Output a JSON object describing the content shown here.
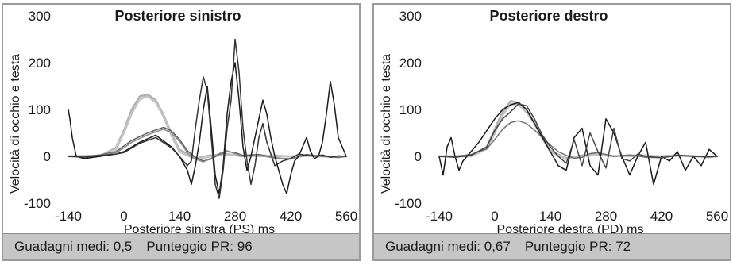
{
  "chart_data": [
    {
      "type": "line",
      "title": "Posteriore sinistro",
      "xlabel": "Posteriore sinistra (PS) ms",
      "ylabel": "Velocità di occhio e testa",
      "x_ticks": [
        -140,
        0,
        140,
        280,
        420,
        560
      ],
      "y_ticks": [
        300,
        200,
        100,
        0,
        -100
      ],
      "xlim": [
        -140,
        560
      ],
      "ylim": [
        -100,
        300
      ],
      "grid": false,
      "series": [
        {
          "color": "#b0b0b0",
          "x": [
            -140,
            -100,
            -60,
            -20,
            0,
            20,
            40,
            60,
            80,
            100,
            120,
            140,
            180,
            220,
            260,
            300,
            340,
            380,
            420,
            460,
            500,
            540,
            560
          ],
          "y": [
            0,
            0,
            1,
            18,
            55,
            100,
            128,
            132,
            120,
            88,
            48,
            14,
            -4,
            2,
            5,
            0,
            2,
            1,
            0,
            2,
            0,
            -2,
            0
          ]
        },
        {
          "color": "#c4c4c4",
          "x": [
            -140,
            -100,
            -60,
            -20,
            0,
            20,
            40,
            60,
            80,
            100,
            120,
            140,
            180,
            220,
            260,
            300,
            340,
            380,
            420,
            460,
            500,
            540,
            560
          ],
          "y": [
            0,
            1,
            0,
            15,
            50,
            92,
            122,
            128,
            116,
            84,
            44,
            10,
            -6,
            0,
            4,
            2,
            0,
            2,
            -1,
            1,
            0,
            -1,
            0
          ]
        },
        {
          "color": "#606060",
          "x": [
            -140,
            -100,
            -60,
            -20,
            0,
            20,
            40,
            60,
            80,
            100,
            120,
            140,
            160,
            180,
            200,
            220,
            240,
            260,
            280,
            300,
            340,
            380,
            420,
            460,
            500,
            540,
            560
          ],
          "y": [
            0,
            0,
            3,
            10,
            22,
            34,
            42,
            50,
            56,
            62,
            54,
            36,
            12,
            -2,
            -10,
            -6,
            4,
            10,
            8,
            2,
            4,
            -3,
            -6,
            4,
            0,
            -2,
            0
          ]
        },
        {
          "color": "#8a8a8a",
          "x": [
            -140,
            -100,
            -60,
            -20,
            0,
            20,
            40,
            60,
            80,
            100,
            120,
            140,
            160,
            180,
            200,
            220,
            240,
            260,
            280,
            300,
            340,
            380,
            420,
            460,
            500,
            540,
            560
          ],
          "y": [
            0,
            -1,
            2,
            8,
            18,
            30,
            38,
            46,
            52,
            58,
            50,
            32,
            8,
            -6,
            -12,
            -4,
            6,
            12,
            6,
            0,
            2,
            -4,
            -5,
            2,
            1,
            -1,
            0
          ]
        },
        {
          "color": "#1a1a1a",
          "x": [
            -140,
            -136,
            -130,
            -120,
            -100,
            -60,
            -20,
            0,
            40,
            80,
            120,
            140,
            160,
            170,
            180,
            190,
            200,
            210,
            220,
            230,
            240,
            250,
            260,
            270,
            280,
            290,
            300,
            310,
            320,
            330,
            340,
            350,
            360,
            370,
            380,
            390,
            400,
            410,
            420,
            430,
            440,
            450,
            460,
            470,
            480,
            490,
            500,
            510,
            520,
            530,
            540,
            560
          ],
          "y": [
            100,
            80,
            40,
            0,
            -5,
            0,
            5,
            10,
            30,
            45,
            20,
            0,
            -30,
            -60,
            -20,
            30,
            100,
            150,
            60,
            -40,
            -80,
            -20,
            90,
            160,
            200,
            120,
            20,
            -30,
            0,
            40,
            80,
            120,
            90,
            40,
            0,
            -30,
            -60,
            -80,
            -40,
            -10,
            0,
            20,
            40,
            10,
            -5,
            0,
            30,
            90,
            160,
            110,
            40,
            0
          ]
        },
        {
          "color": "#333333",
          "x": [
            -140,
            -100,
            -60,
            -20,
            0,
            40,
            80,
            120,
            140,
            160,
            170,
            180,
            190,
            200,
            210,
            220,
            230,
            240,
            250,
            260,
            270,
            280,
            290,
            300,
            310,
            320,
            330,
            340,
            350,
            360,
            380,
            400,
            420,
            440,
            460,
            480,
            500,
            520,
            540,
            560
          ],
          "y": [
            0,
            -2,
            2,
            5,
            8,
            28,
            40,
            18,
            0,
            -20,
            -10,
            60,
            120,
            170,
            140,
            40,
            -60,
            -90,
            -30,
            60,
            120,
            250,
            180,
            60,
            -10,
            -60,
            -20,
            40,
            70,
            30,
            -20,
            -10,
            -5,
            5,
            2,
            0,
            3,
            -2,
            1,
            0
          ]
        }
      ]
    },
    {
      "type": "line",
      "title": "Posteriore destro",
      "xlabel": "Posteriore destra (PD) ms",
      "ylabel": "Velocità di occhio e testa",
      "x_ticks": [
        -140,
        0,
        140,
        280,
        420,
        560
      ],
      "y_ticks": [
        300,
        200,
        100,
        0,
        -100
      ],
      "xlim": [
        -140,
        560
      ],
      "ylim": [
        -100,
        300
      ],
      "grid": false,
      "series": [
        {
          "color": "#b0b0b0",
          "x": [
            -140,
            -100,
            -60,
            -20,
            0,
            20,
            40,
            60,
            80,
            100,
            120,
            140,
            180,
            220,
            260,
            300,
            340,
            380,
            420,
            460,
            500,
            540,
            560
          ],
          "y": [
            0,
            0,
            1,
            20,
            58,
            95,
            118,
            114,
            98,
            72,
            40,
            12,
            -4,
            2,
            4,
            0,
            2,
            1,
            0,
            2,
            0,
            -1,
            0
          ]
        },
        {
          "color": "#c4c4c4",
          "x": [
            -140,
            -100,
            -60,
            -20,
            0,
            20,
            40,
            60,
            80,
            100,
            120,
            140,
            180,
            220,
            260,
            300,
            340,
            380,
            420,
            460,
            500,
            540,
            560
          ],
          "y": [
            0,
            0,
            0,
            16,
            50,
            88,
            112,
            110,
            94,
            70,
            38,
            10,
            -6,
            0,
            3,
            1,
            0,
            2,
            -1,
            1,
            0,
            -2,
            0
          ]
        },
        {
          "color": "#707070",
          "x": [
            -140,
            -100,
            -60,
            -20,
            0,
            20,
            40,
            60,
            80,
            100,
            120,
            140,
            160,
            180,
            200,
            220,
            240,
            260,
            280,
            300,
            340,
            380,
            420,
            460,
            500,
            540,
            560
          ],
          "y": [
            0,
            0,
            4,
            16,
            36,
            58,
            72,
            76,
            70,
            56,
            40,
            24,
            10,
            2,
            -4,
            -2,
            6,
            8,
            4,
            0,
            3,
            -2,
            -3,
            2,
            1,
            -1,
            0
          ]
        },
        {
          "color": "#1a1a1a",
          "x": [
            -140,
            -130,
            -120,
            -110,
            -100,
            -90,
            -80,
            -60,
            -40,
            -20,
            0,
            20,
            40,
            60,
            80,
            100,
            120,
            140,
            160,
            180,
            200,
            220,
            240,
            260,
            280,
            300,
            320,
            340,
            360,
            380,
            400,
            420,
            440,
            460,
            480,
            500,
            520,
            540,
            560
          ],
          "y": [
            0,
            -40,
            20,
            40,
            0,
            -30,
            -10,
            10,
            30,
            55,
            80,
            100,
            110,
            115,
            100,
            70,
            40,
            10,
            -20,
            -30,
            40,
            60,
            -20,
            -40,
            80,
            50,
            0,
            -40,
            0,
            30,
            -60,
            0,
            -10,
            10,
            -30,
            0,
            -20,
            15,
            0
          ]
        },
        {
          "color": "#444444",
          "x": [
            -140,
            -100,
            -60,
            -20,
            0,
            20,
            40,
            60,
            80,
            100,
            120,
            140,
            160,
            180,
            200,
            220,
            240,
            260,
            280,
            300,
            320,
            340,
            360,
            380,
            420,
            460,
            500,
            540,
            560
          ],
          "y": [
            0,
            -2,
            2,
            20,
            55,
            80,
            95,
            112,
            108,
            80,
            45,
            20,
            0,
            -15,
            35,
            -20,
            50,
            10,
            -25,
            60,
            -5,
            -10,
            5,
            0,
            -3,
            2,
            0,
            -1,
            0
          ]
        }
      ]
    }
  ],
  "panels": [
    {
      "gain_text": "Guadagni medi: 0,5",
      "score_text": "Punteggio PR: 96"
    },
    {
      "gain_text": "Guadagni medi: 0,67",
      "score_text": "Punteggio PR: 72"
    }
  ]
}
